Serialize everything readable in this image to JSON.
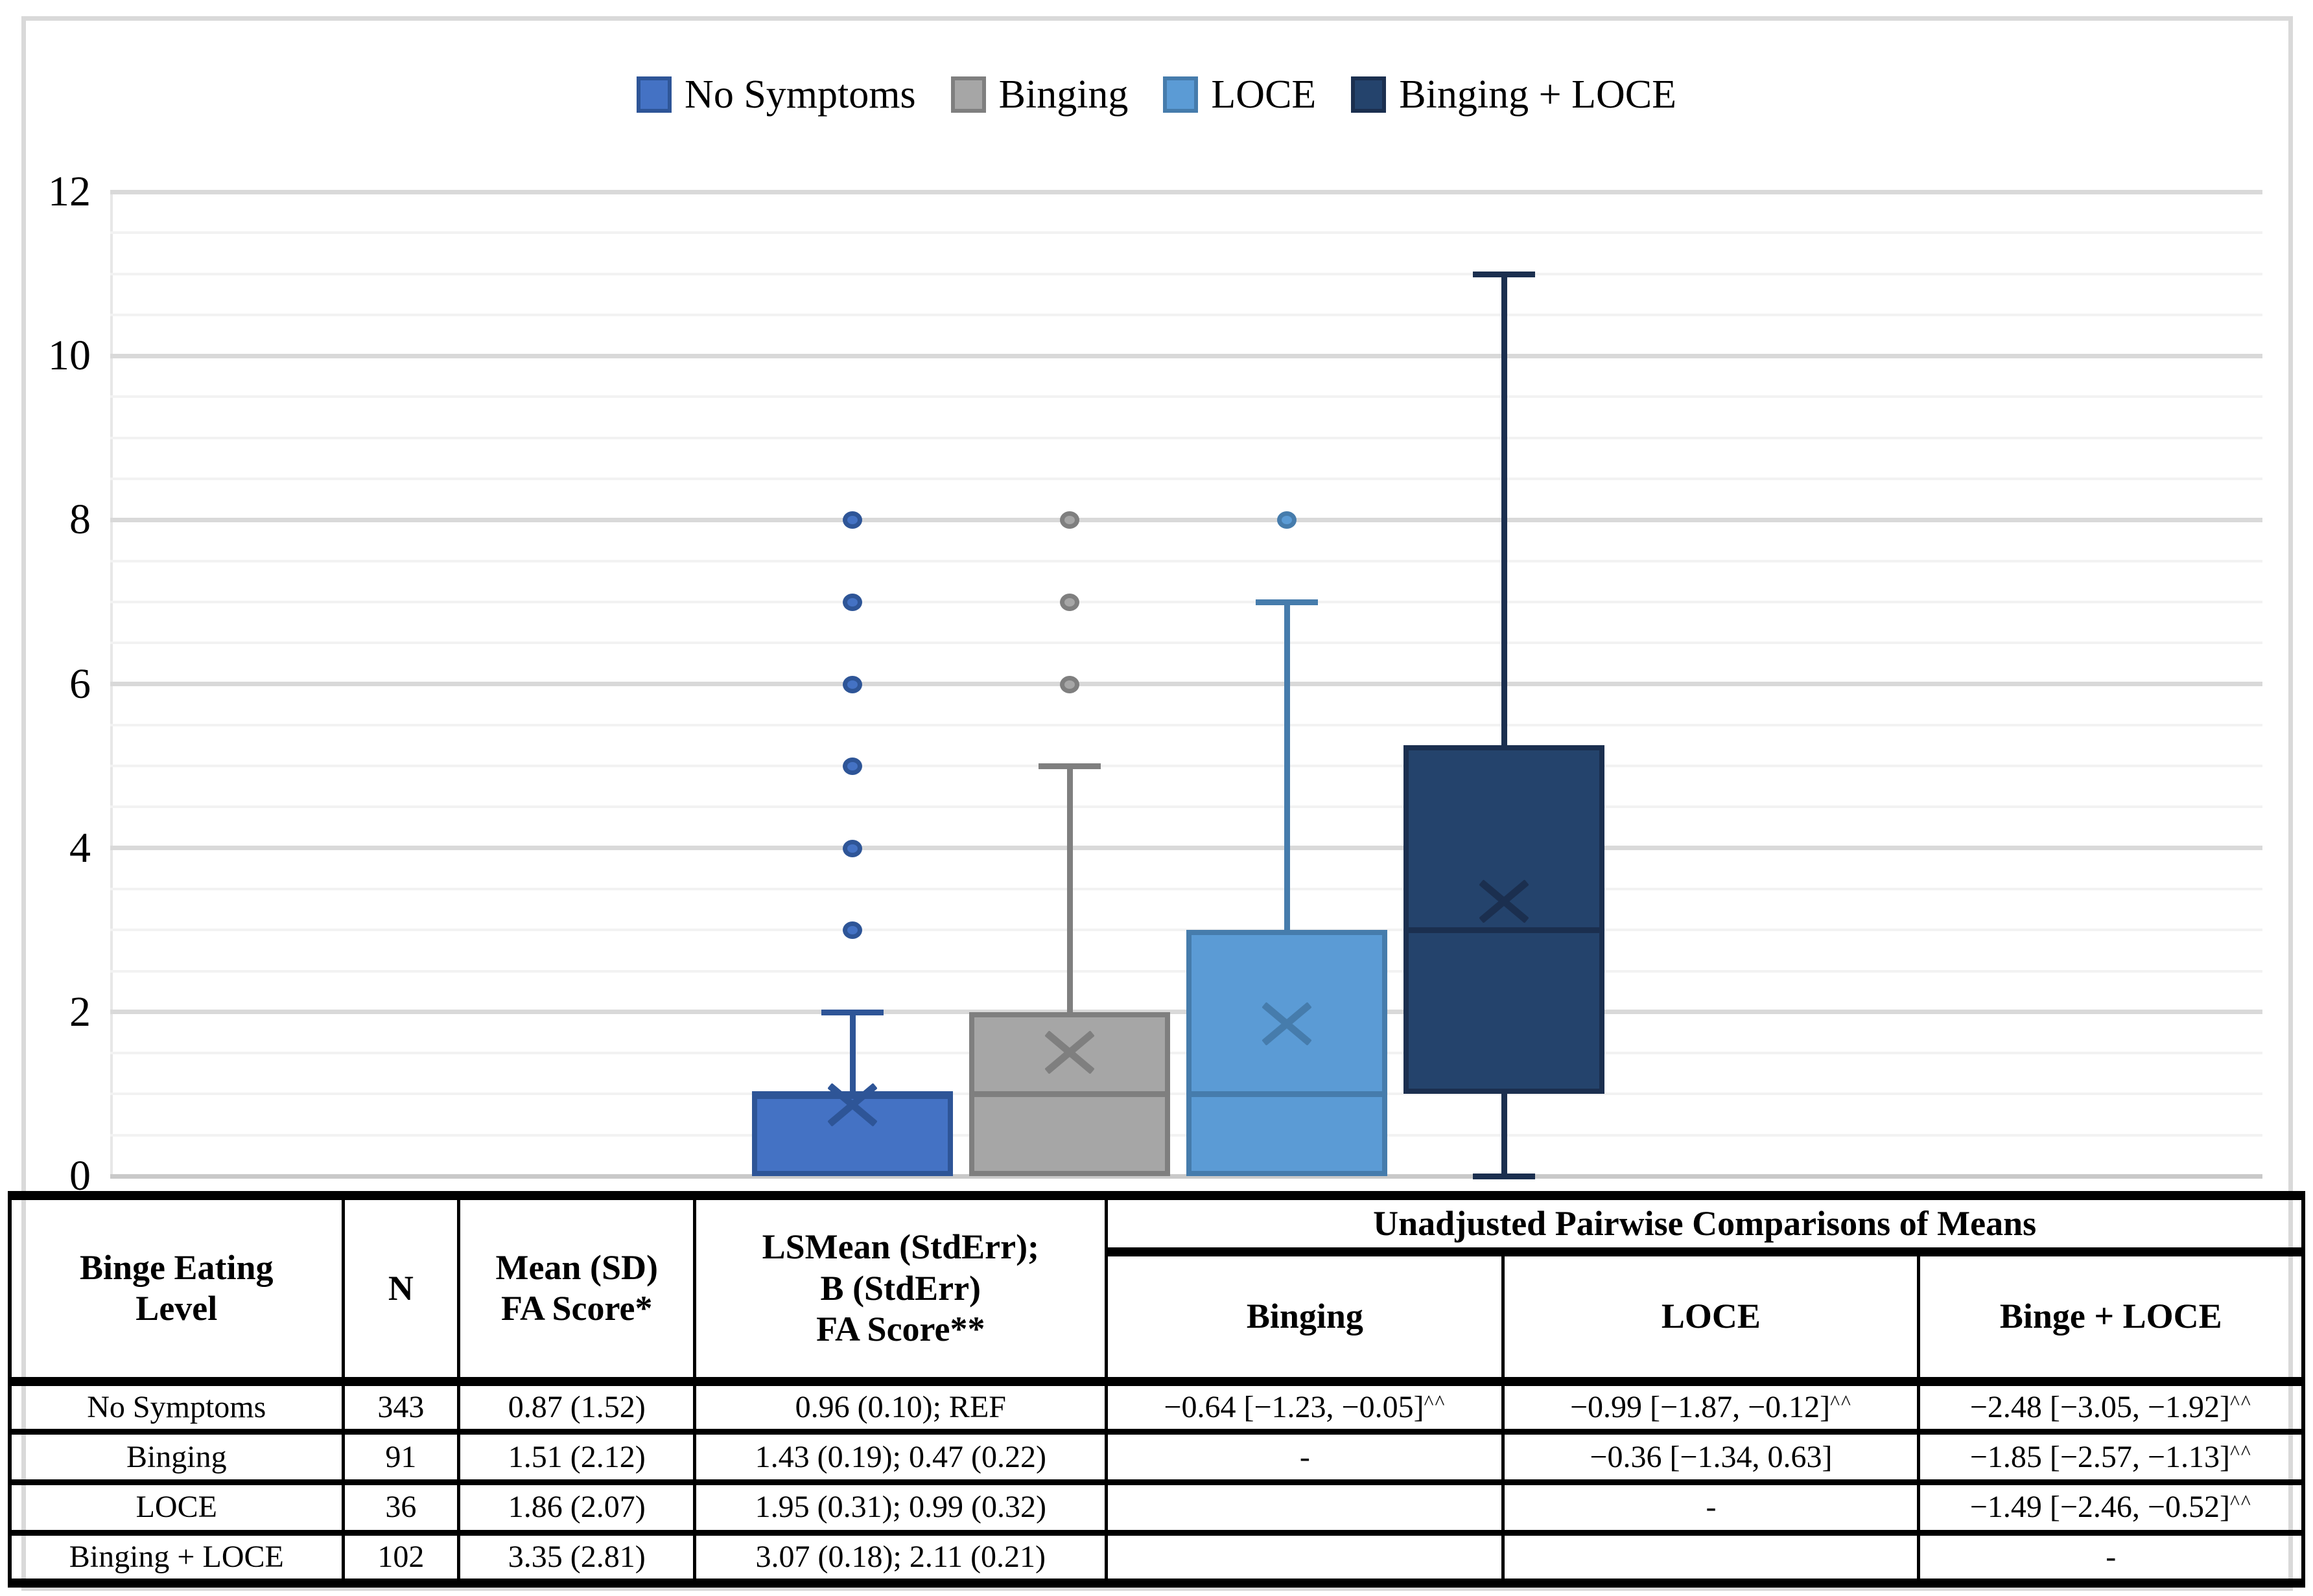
{
  "chart_data": {
    "type": "boxplot",
    "title": "",
    "xlabel": "",
    "ylabel": "",
    "ylim": [
      0,
      12
    ],
    "yticks": [
      0,
      2,
      4,
      6,
      8,
      10,
      12
    ],
    "gridline_step": 0.5,
    "grid": "on",
    "legend_position": "top",
    "categories": [
      "No Symptoms",
      "Binging",
      "LOCE",
      "Binging + LOCE"
    ],
    "series": [
      {
        "name": "No Symptoms",
        "fill": "#4472C4",
        "line": "#2E5597",
        "min": 0,
        "q1": 0,
        "median": 1,
        "q3": 1,
        "whisker_high": 2,
        "mean": 0.87,
        "outliers": [
          3,
          4,
          5,
          6,
          7,
          8
        ]
      },
      {
        "name": "Binging",
        "fill": "#A6A6A6",
        "line": "#7F7F7F",
        "min": 0,
        "q1": 0,
        "median": 1,
        "q3": 2,
        "whisker_high": 5,
        "mean": 1.51,
        "outliers": [
          6,
          7,
          8
        ]
      },
      {
        "name": "LOCE",
        "fill": "#5B9BD5",
        "line": "#467CAC",
        "min": 0,
        "q1": 0,
        "median": 1,
        "q3": 3,
        "whisker_high": 7,
        "mean": 1.86,
        "outliers": [
          8
        ]
      },
      {
        "name": "Binging + LOCE",
        "fill": "#24436C",
        "line": "#1B2F4F",
        "min": 0,
        "q1": 1,
        "median": 3,
        "q3": 5.25,
        "whisker_high": 11,
        "mean": 3.35,
        "outliers": []
      }
    ]
  },
  "table": {
    "header": {
      "level": "Binge Eating\nLevel",
      "n": "N",
      "mean": "Mean (SD)\nFA Score*",
      "lsmean": "LSMean (StdErr);\nB (StdErr)\nFA Score**",
      "group": "Unadjusted Pairwise Comparisons of Means",
      "sub_binging": "Binging",
      "sub_loce": "LOCE",
      "sub_binge_loce": "Binge + LOCE"
    },
    "rows": [
      {
        "level": "No Symptoms",
        "n": "343",
        "mean": "0.87 (1.52)",
        "lsmean": "0.96 (0.10); REF",
        "binging": {
          "t": "−0.64 [−1.23, −0.05]",
          "s": "^^"
        },
        "loce": {
          "t": "−0.99 [−1.87, −0.12]",
          "s": "^^"
        },
        "binge_loce": {
          "t": "−2.48 [−3.05, −1.92]",
          "s": "^^"
        }
      },
      {
        "level": "Binging",
        "n": "91",
        "mean": "1.51 (2.12)",
        "lsmean": "1.43 (0.19); 0.47 (0.22)",
        "binging": {
          "t": "-",
          "s": ""
        },
        "loce": {
          "t": "−0.36 [−1.34, 0.63]",
          "s": ""
        },
        "binge_loce": {
          "t": "−1.85 [−2.57, −1.13]",
          "s": "^^"
        }
      },
      {
        "level": "LOCE",
        "n": "36",
        "mean": "1.86 (2.07)",
        "lsmean": "1.95 (0.31); 0.99 (0.32)",
        "binging": {
          "t": "",
          "s": ""
        },
        "loce": {
          "t": "-",
          "s": ""
        },
        "binge_loce": {
          "t": "−1.49 [−2.46, −0.52]",
          "s": "^^"
        }
      },
      {
        "level": "Binging + LOCE",
        "n": "102",
        "mean": "3.35 (2.81)",
        "lsmean": "3.07 (0.18); 2.11 (0.21)",
        "binging": {
          "t": "",
          "s": ""
        },
        "loce": {
          "t": "",
          "s": ""
        },
        "binge_loce": {
          "t": "-",
          "s": ""
        }
      }
    ]
  }
}
